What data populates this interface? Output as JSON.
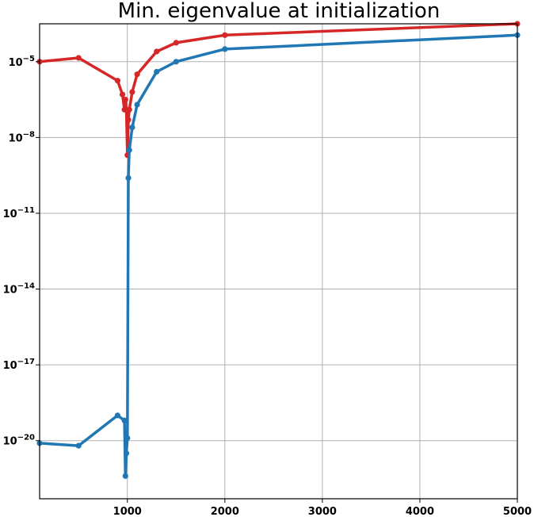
{
  "chart_data": {
    "type": "line",
    "title": "Min. eigenvalue at initialization",
    "xlabel": "",
    "ylabel": "",
    "xscale": "linear",
    "yscale": "log",
    "xlim": [
      100,
      5000
    ],
    "ylim_exponent": [
      -22.3,
      -3.5
    ],
    "grid": true,
    "x_ticks": [
      {
        "value": 1000,
        "label": "1000"
      },
      {
        "value": 2000,
        "label": "2000"
      },
      {
        "value": 3000,
        "label": "3000"
      },
      {
        "value": 4000,
        "label": "4000"
      },
      {
        "value": 5000,
        "label": "5000"
      }
    ],
    "y_ticks": [
      {
        "exp": -5,
        "base": "10",
        "sup": "−5"
      },
      {
        "exp": -8,
        "base": "10",
        "sup": "−8"
      },
      {
        "exp": -11,
        "base": "10",
        "sup": "−11"
      },
      {
        "exp": -14,
        "base": "10",
        "sup": "−14"
      },
      {
        "exp": -17,
        "base": "10",
        "sup": "−17"
      },
      {
        "exp": -20,
        "base": "10",
        "sup": "−20"
      }
    ],
    "series": [
      {
        "color": "#d62728",
        "x": [
          100,
          500,
          900,
          950,
          970,
          980,
          990,
          1000,
          1010,
          1020,
          1050,
          1100,
          1300,
          1500,
          2000,
          5000
        ],
        "log10_y": [
          -5.0,
          -4.85,
          -5.75,
          -6.3,
          -6.9,
          -6.5,
          -6.9,
          -8.7,
          -7.3,
          -6.9,
          -6.2,
          -5.5,
          -4.6,
          -4.25,
          -3.95,
          -3.5
        ]
      },
      {
        "color": "#1f77b4",
        "x": [
          100,
          500,
          900,
          970,
          980,
          990,
          1000,
          1010,
          1020,
          1050,
          1100,
          1300,
          1500,
          2000,
          5000
        ],
        "log10_y": [
          -20.1,
          -20.2,
          -19.0,
          -19.2,
          -21.4,
          -20.5,
          -19.9,
          -9.6,
          -8.5,
          -7.6,
          -6.7,
          -5.4,
          -5.0,
          -4.5,
          -3.95
        ]
      }
    ]
  }
}
